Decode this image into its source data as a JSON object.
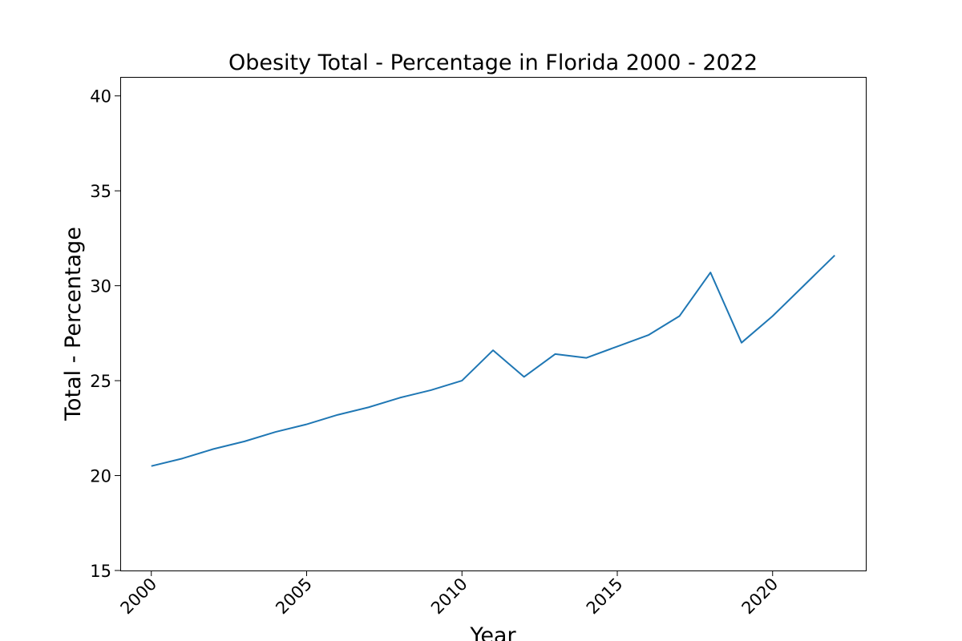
{
  "chart_data": {
    "type": "line",
    "title": "Obesity Total - Percentage in Florida 2000 - 2022",
    "xlabel": "Year",
    "ylabel": "Total - Percentage",
    "x": [
      2000,
      2001,
      2002,
      2003,
      2004,
      2005,
      2006,
      2007,
      2008,
      2009,
      2010,
      2011,
      2012,
      2013,
      2014,
      2015,
      2016,
      2017,
      2018,
      2019,
      2020,
      2021,
      2022
    ],
    "series": [
      {
        "values": [
          20.5,
          20.9,
          21.4,
          21.8,
          22.3,
          22.7,
          23.2,
          23.6,
          24.1,
          24.5,
          25.0,
          26.6,
          25.2,
          26.4,
          26.2,
          26.8,
          27.4,
          28.4,
          30.7,
          27.0,
          28.4,
          30.0,
          31.6
        ],
        "color": "#1f77b4"
      }
    ],
    "xlim": [
      1999,
      2023
    ],
    "ylim": [
      15,
      41
    ],
    "xticks": [
      "2000",
      "2005",
      "2010",
      "2015",
      "2020"
    ],
    "yticks": [
      "15",
      "20",
      "25",
      "30",
      "35",
      "40"
    ],
    "xtick_rotation": "45 degrees",
    "grid": false,
    "legend": "none"
  }
}
